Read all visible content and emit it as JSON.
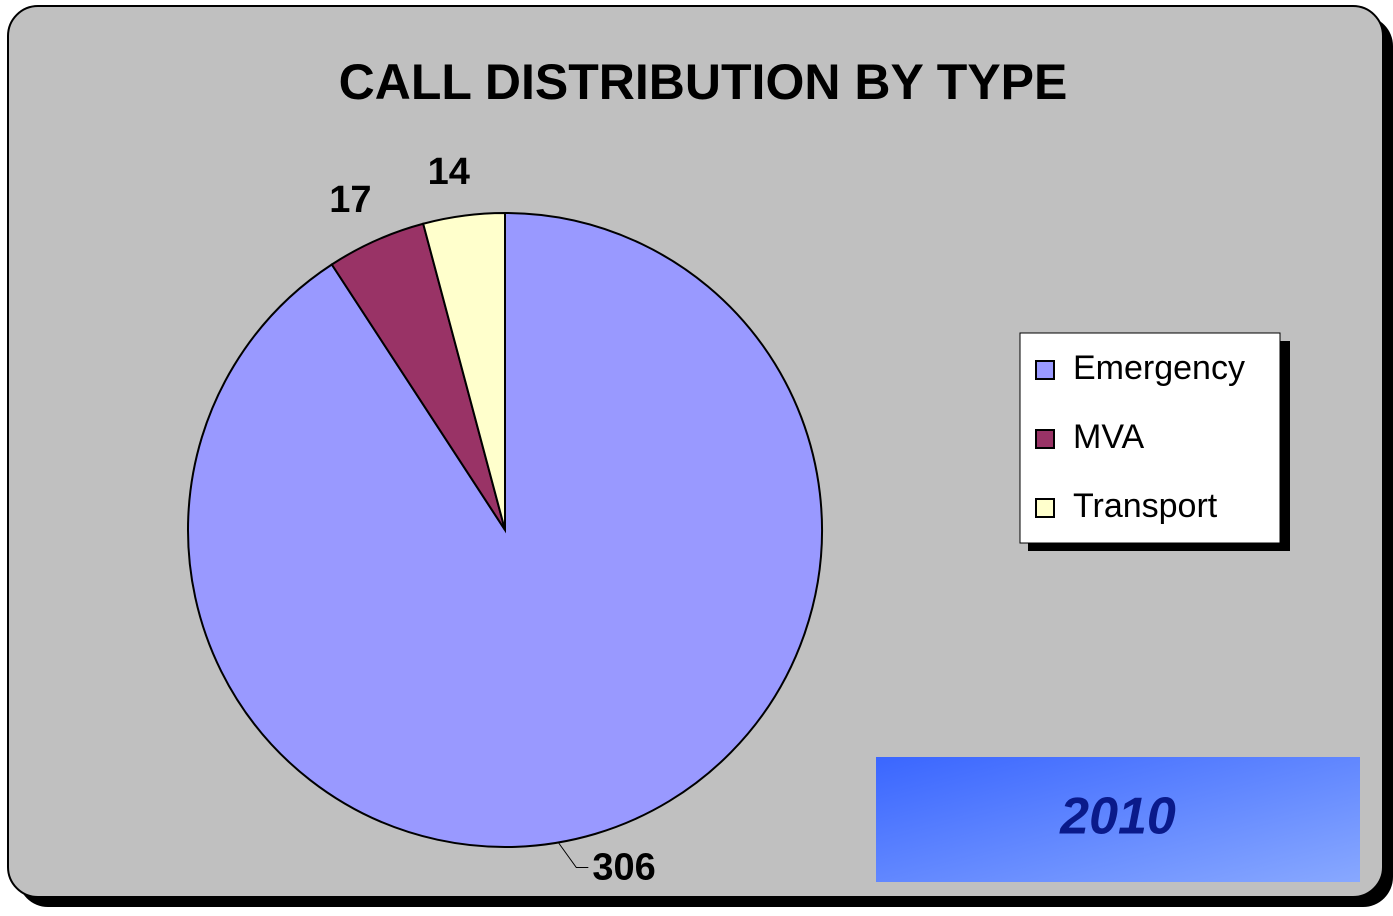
{
  "chart_data": {
    "type": "pie",
    "title": "CALL DISTRIBUTION BY TYPE",
    "categories": [
      "Emergency",
      "MVA",
      "Transport"
    ],
    "values": [
      306,
      17,
      14
    ],
    "colors": [
      "#9999ff",
      "#993366",
      "#ffffcc"
    ],
    "annotation": "2010"
  }
}
